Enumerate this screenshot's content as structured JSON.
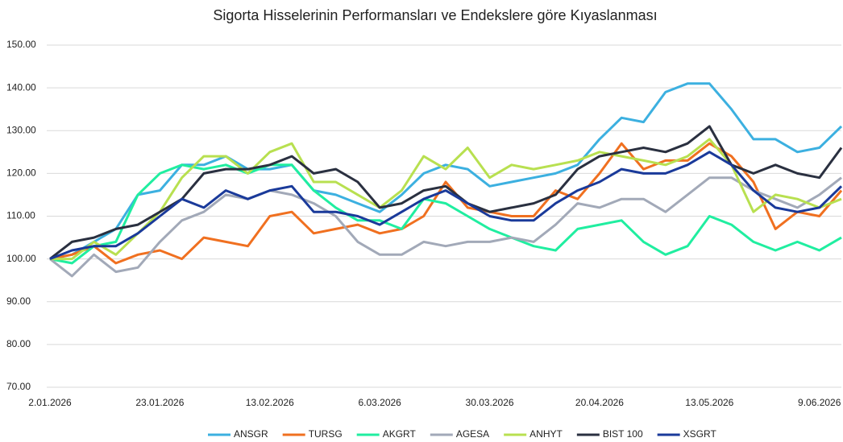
{
  "chart_data": {
    "type": "line",
    "title": "Sigorta Hisselerinin Performansları ve Endekslere göre Kıyaslanması",
    "categories": [
      "2.01.2026",
      null,
      null,
      null,
      null,
      "23.01.2026",
      null,
      null,
      null,
      null,
      "13.02.2026",
      null,
      null,
      null,
      null,
      "6.03.2026",
      null,
      null,
      null,
      null,
      "30.03.2026",
      null,
      null,
      null,
      null,
      "20.04.2026",
      null,
      null,
      null,
      null,
      "13.05.2026",
      null,
      null,
      null,
      null,
      "9.06.2026",
      null
    ],
    "ylim": [
      70,
      150
    ],
    "yticks": [
      {
        "value": 70,
        "label": "70.00"
      },
      {
        "value": 80,
        "label": "80.00"
      },
      {
        "value": 90,
        "label": "90.00"
      },
      {
        "value": 100,
        "label": "100.00"
      },
      {
        "value": 110,
        "label": "110.00"
      },
      {
        "value": 120,
        "label": "120.00"
      },
      {
        "value": 130,
        "label": "130.00"
      },
      {
        "value": 140,
        "label": "140.00"
      },
      {
        "value": 150,
        "label": "150.00"
      }
    ],
    "grid": true,
    "legend": "bottom",
    "series": [
      {
        "name": "ANSGR",
        "color": "#3cb0e0",
        "values": [
          100,
          101,
          104,
          107,
          115,
          116,
          122,
          122,
          124,
          121,
          121,
          122,
          116,
          115,
          113,
          111,
          115,
          120,
          122,
          121,
          117,
          118,
          119,
          120,
          122,
          128,
          133,
          132,
          139,
          141,
          141,
          135,
          128,
          128,
          125,
          126,
          131
        ]
      },
      {
        "name": "TURSG",
        "color": "#f07020",
        "values": [
          100,
          101,
          103,
          99,
          101,
          102,
          100,
          105,
          104,
          103,
          110,
          111,
          106,
          107,
          108,
          106,
          107,
          110,
          118,
          112,
          111,
          110,
          110,
          116,
          114,
          120,
          127,
          121,
          123,
          123,
          127,
          124,
          118,
          107,
          111,
          110,
          116
        ]
      },
      {
        "name": "AKGRT",
        "color": "#20eea0",
        "values": [
          100,
          99,
          103,
          104,
          115,
          120,
          122,
          121,
          122,
          120,
          122,
          122,
          116,
          112,
          109,
          109,
          107,
          114,
          113,
          110,
          107,
          105,
          103,
          102,
          107,
          108,
          109,
          104,
          101,
          103,
          110,
          108,
          104,
          102,
          104,
          102,
          105
        ]
      },
      {
        "name": "AGESA",
        "color": "#a2a9b8",
        "values": [
          100,
          96,
          101,
          97,
          98,
          104,
          109,
          111,
          115,
          114,
          116,
          115,
          113,
          110,
          104,
          101,
          101,
          104,
          103,
          104,
          104,
          105,
          104,
          108,
          113,
          112,
          114,
          114,
          111,
          115,
          119,
          119,
          116,
          114,
          112,
          115,
          119
        ]
      },
      {
        "name": "ANHYT",
        "color": "#b8e050",
        "values": [
          100,
          100,
          104,
          101,
          106,
          111,
          119,
          124,
          124,
          120,
          125,
          127,
          118,
          118,
          115,
          112,
          116,
          124,
          121,
          126,
          119,
          122,
          121,
          122,
          123,
          125,
          124,
          123,
          122,
          124,
          128,
          122,
          111,
          115,
          114,
          112,
          114
        ]
      },
      {
        "name": "BIST 100",
        "color": "#2a3040",
        "values": [
          100,
          104,
          105,
          107,
          108,
          111,
          114,
          120,
          121,
          121,
          122,
          124,
          120,
          121,
          118,
          112,
          113,
          116,
          117,
          113,
          111,
          112,
          113,
          115,
          121,
          124,
          125,
          126,
          125,
          127,
          131,
          122,
          120,
          122,
          120,
          119,
          126
        ]
      },
      {
        "name": "XSGRT",
        "color": "#1a3a9a",
        "values": [
          100,
          102,
          103,
          103,
          106,
          110,
          114,
          112,
          116,
          114,
          116,
          117,
          111,
          111,
          110,
          108,
          111,
          114,
          116,
          113,
          110,
          109,
          109,
          113,
          116,
          118,
          121,
          120,
          120,
          122,
          125,
          122,
          116,
          112,
          111,
          112,
          117
        ]
      }
    ]
  }
}
